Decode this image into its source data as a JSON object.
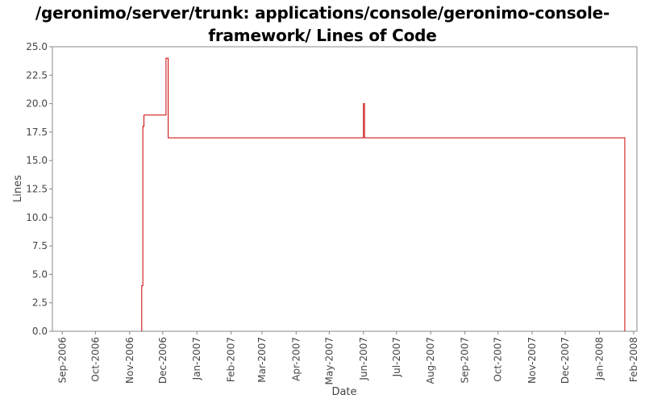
{
  "chart_data": {
    "type": "line",
    "title_line1": "/geronimo/server/trunk: applications/console/geronimo-console-",
    "title_line2": "framework/ Lines of Code",
    "xlabel": "Date",
    "ylabel": "Lines",
    "ylim": [
      0,
      25
    ],
    "yticks": [
      "0.0",
      "2.5",
      "5.0",
      "7.5",
      "10.0",
      "12.5",
      "15.0",
      "17.5",
      "20.0",
      "22.5",
      "25.0"
    ],
    "xlim": [
      "2006-08-23",
      "2008-02-04"
    ],
    "xticks": [
      {
        "date": "2006-09-01",
        "label": "Sep-2006"
      },
      {
        "date": "2006-10-01",
        "label": "Oct-2006"
      },
      {
        "date": "2006-11-01",
        "label": "Nov-2006"
      },
      {
        "date": "2006-12-01",
        "label": "Dec-2006"
      },
      {
        "date": "2007-01-01",
        "label": "Jan-2007"
      },
      {
        "date": "2007-02-01",
        "label": "Feb-2007"
      },
      {
        "date": "2007-03-01",
        "label": "Mar-2007"
      },
      {
        "date": "2007-04-01",
        "label": "Apr-2007"
      },
      {
        "date": "2007-05-01",
        "label": "May-2007"
      },
      {
        "date": "2007-06-01",
        "label": "Jun-2007"
      },
      {
        "date": "2007-07-01",
        "label": "Jul-2007"
      },
      {
        "date": "2007-08-01",
        "label": "Aug-2007"
      },
      {
        "date": "2007-09-01",
        "label": "Sep-2007"
      },
      {
        "date": "2007-10-01",
        "label": "Oct-2007"
      },
      {
        "date": "2007-11-01",
        "label": "Nov-2007"
      },
      {
        "date": "2007-12-01",
        "label": "Dec-2007"
      },
      {
        "date": "2008-01-01",
        "label": "Jan-2008"
      },
      {
        "date": "2008-02-01",
        "label": "Feb-2008"
      }
    ],
    "series": [
      {
        "color": "#cc0000",
        "step": true,
        "points": [
          {
            "x": "2006-11-12",
            "y": 0
          },
          {
            "x": "2006-11-12",
            "y": 4
          },
          {
            "x": "2006-11-13",
            "y": 18
          },
          {
            "x": "2006-11-14",
            "y": 19
          },
          {
            "x": "2006-12-04",
            "y": 24
          },
          {
            "x": "2006-12-06",
            "y": 17
          },
          {
            "x": "2007-06-01",
            "y": 20
          },
          {
            "x": "2007-06-02",
            "y": 17
          },
          {
            "x": "2008-01-24",
            "y": 0
          }
        ]
      }
    ],
    "grid": false
  }
}
